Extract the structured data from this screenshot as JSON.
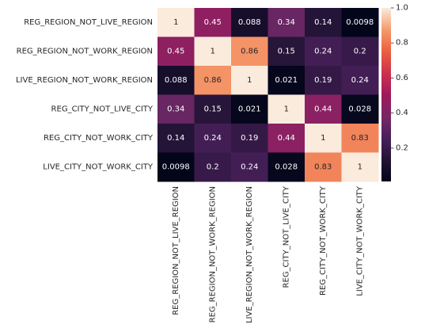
{
  "chart_data": {
    "type": "heatmap",
    "title": "",
    "xlabel": "",
    "ylabel": "",
    "rows": [
      "REG_REGION_NOT_LIVE_REGION",
      "REG_REGION_NOT_WORK_REGION",
      "LIVE_REGION_NOT_WORK_REGION",
      "REG_CITY_NOT_LIVE_CITY",
      "REG_CITY_NOT_WORK_CITY",
      "LIVE_CITY_NOT_WORK_CITY"
    ],
    "columns": [
      "REG_REGION_NOT_LIVE_REGION",
      "REG_REGION_NOT_WORK_REGION",
      "LIVE_REGION_NOT_WORK_REGION",
      "REG_CITY_NOT_LIVE_CITY",
      "REG_CITY_NOT_WORK_CITY",
      "LIVE_CITY_NOT_WORK_CITY"
    ],
    "values": [
      [
        1,
        0.45,
        0.088,
        0.34,
        0.14,
        0.0098
      ],
      [
        0.45,
        1,
        0.86,
        0.15,
        0.24,
        0.2
      ],
      [
        0.088,
        0.86,
        1,
        0.021,
        0.19,
        0.24
      ],
      [
        0.34,
        0.15,
        0.021,
        1,
        0.44,
        0.028
      ],
      [
        0.14,
        0.24,
        0.19,
        0.44,
        1,
        0.83
      ],
      [
        0.0098,
        0.2,
        0.24,
        0.028,
        0.83,
        1
      ]
    ],
    "annotations": [
      [
        "1",
        "0.45",
        "0.088",
        "0.34",
        "0.14",
        "0.0098"
      ],
      [
        "0.45",
        "1",
        "0.86",
        "0.15",
        "0.24",
        "0.2"
      ],
      [
        "0.088",
        "0.86",
        "1",
        "0.021",
        "0.19",
        "0.24"
      ],
      [
        "0.34",
        "0.15",
        "0.021",
        "1",
        "0.44",
        "0.028"
      ],
      [
        "0.14",
        "0.24",
        "0.19",
        "0.44",
        "1",
        "0.83"
      ],
      [
        "0.0098",
        "0.2",
        "0.24",
        "0.028",
        "0.83",
        "1"
      ]
    ],
    "colormap": "rocket",
    "vmin": 0.0098,
    "vmax": 1,
    "colorbar": {
      "ticks": [
        0.2,
        0.4,
        0.6,
        0.8,
        1.0
      ],
      "tick_labels": [
        "0.2",
        "0.4",
        "0.6",
        "0.8",
        "1.0"
      ],
      "placement": "right"
    },
    "grid": false,
    "legend": "none"
  }
}
